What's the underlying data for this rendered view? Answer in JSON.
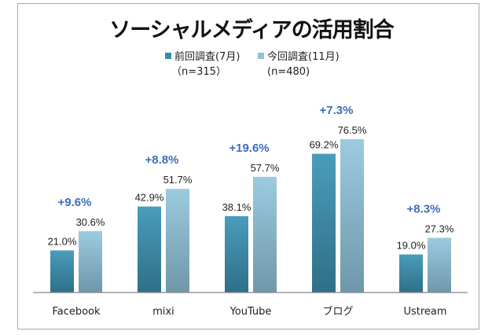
{
  "chart_data": {
    "type": "bar",
    "title": "ソーシャルメディアの活用割合",
    "categories": [
      "Facebook",
      "mixi",
      "YouTube",
      "ブログ",
      "Ustream"
    ],
    "series": [
      {
        "name": "前回調査(7月)",
        "note": "（n=315）",
        "values": [
          21.0,
          42.9,
          38.1,
          69.2,
          19.0
        ],
        "labels": [
          "21.0%",
          "42.9%",
          "38.1%",
          "69.2%",
          "19.0%"
        ],
        "color": "#3a8aa8"
      },
      {
        "name": "今回調査(11月)",
        "note": "(n=480)",
        "values": [
          30.6,
          51.7,
          57.7,
          76.5,
          27.3
        ],
        "labels": [
          "30.6%",
          "51.7%",
          "57.7%",
          "76.5%",
          "27.3%"
        ],
        "color": "#8ec2d8"
      }
    ],
    "annotations": [
      "+9.6%",
      "+8.8%",
      "+19.6%",
      "+7.3%",
      "+8.3%"
    ],
    "annotation_color": "#3d6fb6",
    "ylim": [
      0,
      80
    ],
    "grid": false,
    "legend_placement": "top"
  }
}
